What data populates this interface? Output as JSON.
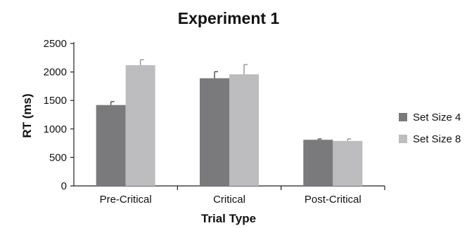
{
  "chart_data": {
    "type": "bar",
    "title": "Experiment 1",
    "xlabel": "Trial Type",
    "ylabel": "RT (ms)",
    "categories": [
      "Pre-Critical",
      "Critical",
      "Post-Critical"
    ],
    "ylim": [
      0,
      2500
    ],
    "yticks": [
      0,
      500,
      1000,
      1500,
      2000,
      2500
    ],
    "grid": false,
    "legend_position": "right",
    "series": [
      {
        "name": "Set Size 4",
        "color": "#7a7a7c",
        "values": [
          1420,
          1890,
          810
        ],
        "errors": [
          60,
          115,
          15
        ]
      },
      {
        "name": "Set Size 8",
        "color": "#bdbdbf",
        "values": [
          2120,
          1960,
          790
        ],
        "errors": [
          95,
          170,
          35
        ]
      }
    ]
  }
}
